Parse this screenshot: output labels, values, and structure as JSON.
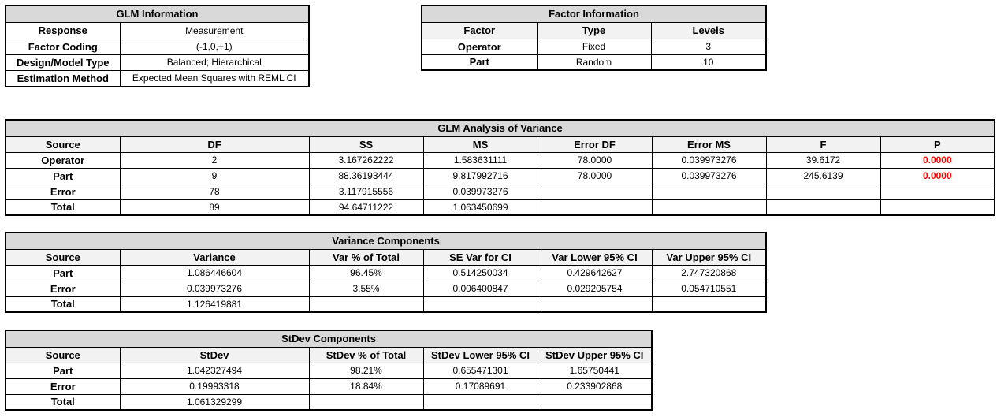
{
  "glm_info": {
    "title": "GLM Information",
    "rows": [
      {
        "label": "Response",
        "value": "Measurement"
      },
      {
        "label": "Factor Coding",
        "value": "(-1,0,+1)"
      },
      {
        "label": "Design/Model Type",
        "value": "Balanced; Hierarchical"
      },
      {
        "label": "Estimation Method",
        "value": "Expected Mean Squares with REML CI"
      }
    ]
  },
  "factor_info": {
    "title": "Factor Information",
    "headers": [
      "Factor",
      "Type",
      "Levels"
    ],
    "rows": [
      [
        "Operator",
        "Fixed",
        "3"
      ],
      [
        "Part",
        "Random",
        "10"
      ]
    ]
  },
  "anova": {
    "title": "GLM Analysis of Variance",
    "headers": [
      "Source",
      "DF",
      "SS",
      "MS",
      "Error DF",
      "Error MS",
      "F",
      "P"
    ],
    "rows": [
      [
        "Operator",
        "2",
        "3.167262222",
        "1.583631111",
        "78.0000",
        "0.039973276",
        "39.6172",
        "0.0000"
      ],
      [
        "Part",
        "9",
        "88.36193444",
        "9.817992716",
        "78.0000",
        "0.039973276",
        "245.6139",
        "0.0000"
      ],
      [
        "Error",
        "78",
        "3.117915556",
        "0.039973276",
        "",
        "",
        "",
        ""
      ],
      [
        "Total",
        "89",
        "94.64711222",
        "1.063450699",
        "",
        "",
        "",
        ""
      ]
    ]
  },
  "variance_components": {
    "title": "Variance Components",
    "headers": [
      "Source",
      "Variance",
      "Var % of Total",
      "SE Var for CI",
      "Var Lower 95% CI",
      "Var Upper 95% CI"
    ],
    "rows": [
      [
        "Part",
        "1.086446604",
        "96.45%",
        "0.514250034",
        "0.429642627",
        "2.747320868"
      ],
      [
        "Error",
        "0.039973276",
        "3.55%",
        "0.006400847",
        "0.029205754",
        "0.054710551"
      ],
      [
        "Total",
        "1.126419881",
        "",
        "",
        "",
        ""
      ]
    ]
  },
  "stdev_components": {
    "title": "StDev Components",
    "headers": [
      "Source",
      "StDev",
      "StDev % of Total",
      "StDev Lower 95% CI",
      "StDev Upper 95% CI"
    ],
    "rows": [
      [
        "Part",
        "1.042327494",
        "98.21%",
        "0.655471301",
        "1.65750441"
      ],
      [
        "Error",
        "0.19993318",
        "18.84%",
        "0.17089691",
        "0.233902868"
      ],
      [
        "Total",
        "1.061329299",
        "",
        "",
        ""
      ]
    ]
  },
  "colors": {
    "title_fill": "#d9d9d9",
    "header_fill": "#f2f2f2",
    "p_value": "#ff0000"
  }
}
